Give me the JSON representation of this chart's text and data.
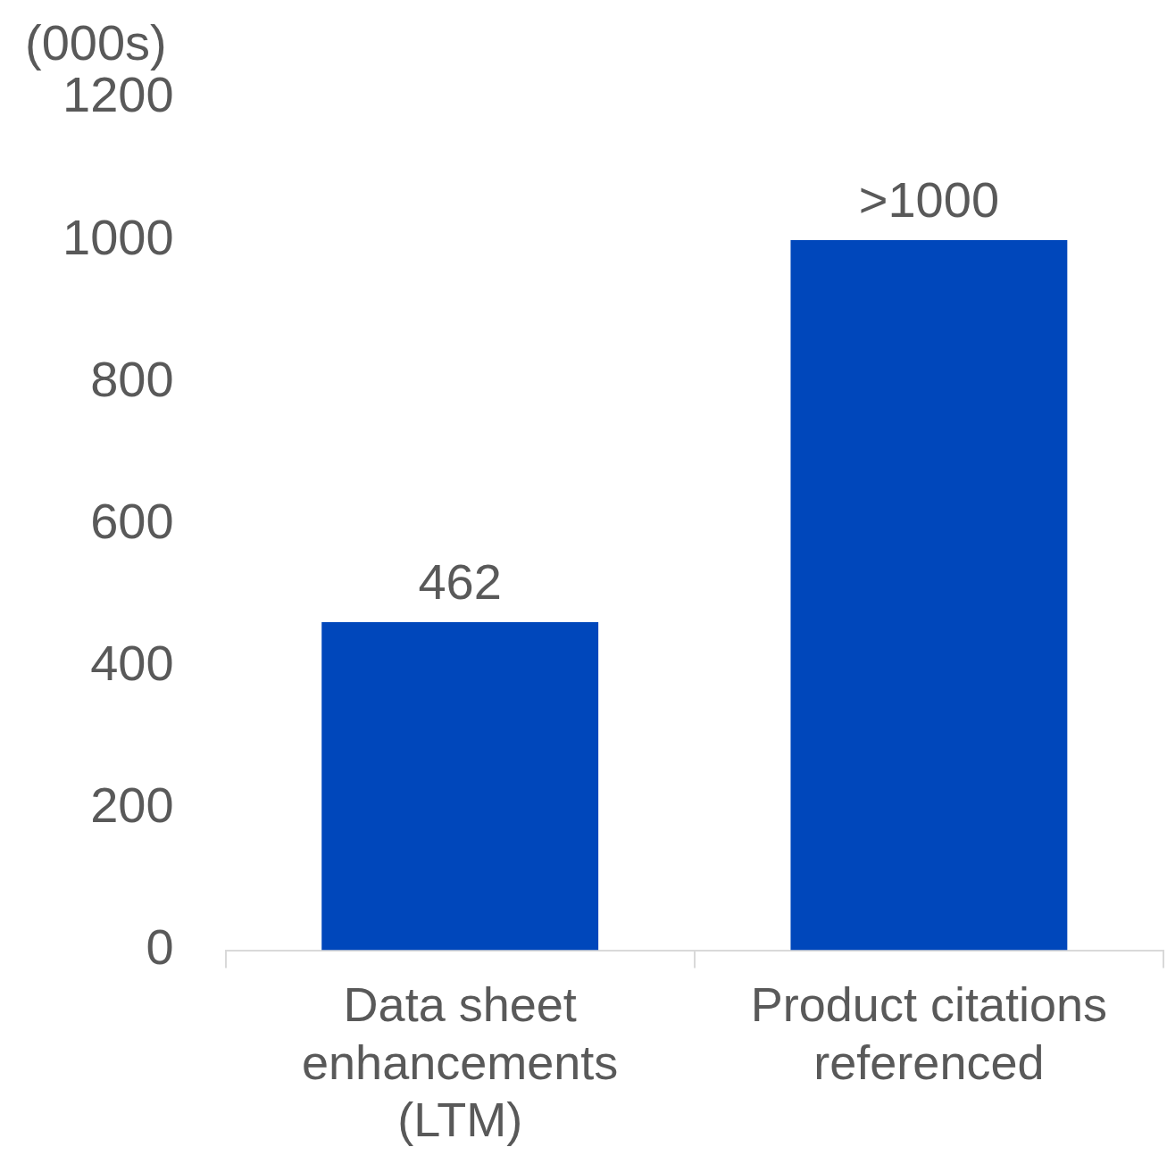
{
  "chart_data": {
    "type": "bar",
    "ylabel": "(000s)",
    "categories": [
      "Data sheet enhancements (LTM)",
      "Product citations referenced"
    ],
    "values": [
      462,
      1000
    ],
    "value_labels": [
      "462",
      ">1000"
    ],
    "color": "#0047bb",
    "ylim": [
      0,
      1200
    ],
    "yticks": [
      0,
      200,
      400,
      600,
      800,
      1000,
      1200
    ]
  }
}
